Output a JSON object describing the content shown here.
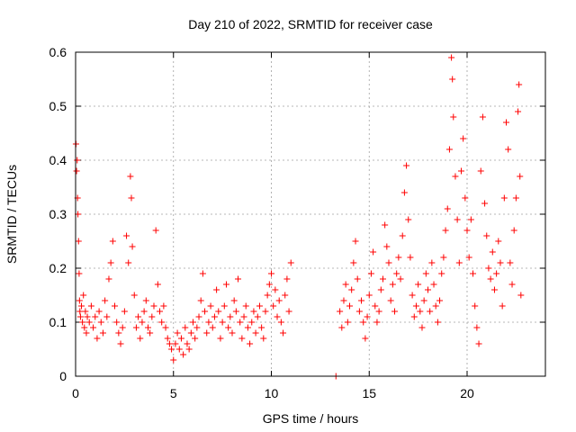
{
  "chart_data": {
    "type": "scatter",
    "title": "Day 210 of 2022, SRMTID for receiver case",
    "xlabel": "GPS time / hours",
    "ylabel": "SRMTID / TECUs",
    "xlim": [
      0,
      24
    ],
    "ylim": [
      0,
      0.6
    ],
    "xticks": [
      0,
      5,
      10,
      15,
      20
    ],
    "yticks": [
      0,
      0.1,
      0.2,
      0.3,
      0.4,
      0.5,
      0.6
    ],
    "xtick_labels": [
      "0",
      "5",
      "10",
      "15",
      "20"
    ],
    "ytick_labels": [
      "0",
      "0.1",
      "0.2",
      "0.3",
      "0.4",
      "0.5",
      "0.6"
    ],
    "grid": true,
    "marker": "+",
    "color": "#ff0000",
    "series": [
      {
        "name": "SRMTID",
        "points": [
          [
            0.02,
            0.43
          ],
          [
            0.05,
            0.38
          ],
          [
            0.08,
            0.4
          ],
          [
            0.1,
            0.33
          ],
          [
            0.12,
            0.3
          ],
          [
            0.15,
            0.25
          ],
          [
            0.18,
            0.19
          ],
          [
            0.2,
            0.14
          ],
          [
            0.22,
            0.12
          ],
          [
            0.25,
            0.11
          ],
          [
            0.3,
            0.13
          ],
          [
            0.35,
            0.1
          ],
          [
            0.4,
            0.15
          ],
          [
            0.45,
            0.09
          ],
          [
            0.5,
            0.12
          ],
          [
            0.55,
            0.08
          ],
          [
            0.6,
            0.11
          ],
          [
            0.7,
            0.1
          ],
          [
            0.8,
            0.13
          ],
          [
            0.9,
            0.09
          ],
          [
            1.0,
            0.11
          ],
          [
            1.1,
            0.07
          ],
          [
            1.2,
            0.12
          ],
          [
            1.3,
            0.1
          ],
          [
            1.4,
            0.08
          ],
          [
            1.5,
            0.14
          ],
          [
            1.6,
            0.11
          ],
          [
            1.7,
            0.18
          ],
          [
            1.8,
            0.21
          ],
          [
            1.9,
            0.25
          ],
          [
            2.0,
            0.13
          ],
          [
            2.1,
            0.1
          ],
          [
            2.2,
            0.08
          ],
          [
            2.3,
            0.06
          ],
          [
            2.4,
            0.09
          ],
          [
            2.5,
            0.12
          ],
          [
            2.6,
            0.26
          ],
          [
            2.7,
            0.21
          ],
          [
            2.8,
            0.37
          ],
          [
            2.85,
            0.33
          ],
          [
            2.9,
            0.24
          ],
          [
            3.0,
            0.15
          ],
          [
            3.1,
            0.09
          ],
          [
            3.2,
            0.11
          ],
          [
            3.3,
            0.07
          ],
          [
            3.4,
            0.1
          ],
          [
            3.5,
            0.12
          ],
          [
            3.6,
            0.14
          ],
          [
            3.7,
            0.09
          ],
          [
            3.8,
            0.08
          ],
          [
            3.9,
            0.11
          ],
          [
            4.0,
            0.13
          ],
          [
            4.1,
            0.27
          ],
          [
            4.2,
            0.17
          ],
          [
            4.3,
            0.12
          ],
          [
            4.4,
            0.1
          ],
          [
            4.5,
            0.13
          ],
          [
            4.6,
            0.09
          ],
          [
            4.7,
            0.07
          ],
          [
            4.8,
            0.06
          ],
          [
            4.9,
            0.05
          ],
          [
            5.0,
            0.03
          ],
          [
            5.1,
            0.06
          ],
          [
            5.2,
            0.08
          ],
          [
            5.3,
            0.05
          ],
          [
            5.4,
            0.07
          ],
          [
            5.5,
            0.04
          ],
          [
            5.6,
            0.09
          ],
          [
            5.7,
            0.06
          ],
          [
            5.8,
            0.05
          ],
          [
            5.9,
            0.08
          ],
          [
            6.0,
            0.1
          ],
          [
            6.1,
            0.07
          ],
          [
            6.2,
            0.09
          ],
          [
            6.3,
            0.11
          ],
          [
            6.4,
            0.14
          ],
          [
            6.5,
            0.19
          ],
          [
            6.6,
            0.12
          ],
          [
            6.7,
            0.08
          ],
          [
            6.8,
            0.1
          ],
          [
            6.9,
            0.13
          ],
          [
            7.0,
            0.09
          ],
          [
            7.1,
            0.11
          ],
          [
            7.2,
            0.16
          ],
          [
            7.3,
            0.12
          ],
          [
            7.4,
            0.07
          ],
          [
            7.5,
            0.1
          ],
          [
            7.6,
            0.13
          ],
          [
            7.7,
            0.17
          ],
          [
            7.8,
            0.09
          ],
          [
            7.9,
            0.11
          ],
          [
            8.0,
            0.08
          ],
          [
            8.1,
            0.14
          ],
          [
            8.2,
            0.12
          ],
          [
            8.3,
            0.18
          ],
          [
            8.4,
            0.1
          ],
          [
            8.5,
            0.07
          ],
          [
            8.6,
            0.11
          ],
          [
            8.7,
            0.13
          ],
          [
            8.8,
            0.09
          ],
          [
            8.9,
            0.06
          ],
          [
            9.0,
            0.1
          ],
          [
            9.1,
            0.12
          ],
          [
            9.2,
            0.08
          ],
          [
            9.3,
            0.11
          ],
          [
            9.4,
            0.13
          ],
          [
            9.5,
            0.09
          ],
          [
            9.6,
            0.07
          ],
          [
            9.7,
            0.12
          ],
          [
            9.8,
            0.15
          ],
          [
            9.9,
            0.17
          ],
          [
            10.0,
            0.19
          ],
          [
            10.1,
            0.13
          ],
          [
            10.2,
            0.16
          ],
          [
            10.3,
            0.11
          ],
          [
            10.4,
            0.14
          ],
          [
            10.5,
            0.1
          ],
          [
            10.6,
            0.08
          ],
          [
            10.7,
            0.15
          ],
          [
            10.8,
            0.18
          ],
          [
            10.9,
            0.12
          ],
          [
            11.0,
            0.21
          ],
          [
            13.3,
            0.0
          ],
          [
            13.5,
            0.12
          ],
          [
            13.6,
            0.09
          ],
          [
            13.7,
            0.14
          ],
          [
            13.8,
            0.17
          ],
          [
            13.9,
            0.1
          ],
          [
            14.0,
            0.13
          ],
          [
            14.1,
            0.16
          ],
          [
            14.2,
            0.21
          ],
          [
            14.3,
            0.25
          ],
          [
            14.4,
            0.18
          ],
          [
            14.5,
            0.12
          ],
          [
            14.6,
            0.14
          ],
          [
            14.7,
            0.1
          ],
          [
            14.8,
            0.07
          ],
          [
            14.9,
            0.11
          ],
          [
            15.0,
            0.15
          ],
          [
            15.1,
            0.19
          ],
          [
            15.2,
            0.23
          ],
          [
            15.3,
            0.13
          ],
          [
            15.4,
            0.1
          ],
          [
            15.5,
            0.12
          ],
          [
            15.6,
            0.16
          ],
          [
            15.7,
            0.18
          ],
          [
            15.8,
            0.28
          ],
          [
            15.9,
            0.24
          ],
          [
            16.0,
            0.21
          ],
          [
            16.1,
            0.14
          ],
          [
            16.2,
            0.17
          ],
          [
            16.3,
            0.12
          ],
          [
            16.4,
            0.19
          ],
          [
            16.5,
            0.22
          ],
          [
            16.6,
            0.18
          ],
          [
            16.7,
            0.26
          ],
          [
            16.8,
            0.34
          ],
          [
            16.9,
            0.39
          ],
          [
            17.0,
            0.29
          ],
          [
            17.1,
            0.22
          ],
          [
            17.2,
            0.15
          ],
          [
            17.3,
            0.11
          ],
          [
            17.4,
            0.13
          ],
          [
            17.5,
            0.17
          ],
          [
            17.6,
            0.12
          ],
          [
            17.7,
            0.09
          ],
          [
            17.8,
            0.14
          ],
          [
            17.9,
            0.19
          ],
          [
            18.0,
            0.16
          ],
          [
            18.1,
            0.12
          ],
          [
            18.2,
            0.21
          ],
          [
            18.3,
            0.17
          ],
          [
            18.4,
            0.13
          ],
          [
            18.5,
            0.1
          ],
          [
            18.6,
            0.14
          ],
          [
            18.7,
            0.19
          ],
          [
            18.8,
            0.22
          ],
          [
            18.9,
            0.27
          ],
          [
            19.0,
            0.31
          ],
          [
            19.1,
            0.42
          ],
          [
            19.2,
            0.59
          ],
          [
            19.25,
            0.55
          ],
          [
            19.3,
            0.48
          ],
          [
            19.4,
            0.37
          ],
          [
            19.5,
            0.29
          ],
          [
            19.6,
            0.21
          ],
          [
            19.7,
            0.38
          ],
          [
            19.8,
            0.44
          ],
          [
            19.9,
            0.33
          ],
          [
            20.0,
            0.27
          ],
          [
            20.1,
            0.22
          ],
          [
            20.2,
            0.29
          ],
          [
            20.3,
            0.19
          ],
          [
            20.4,
            0.13
          ],
          [
            20.5,
            0.09
          ],
          [
            20.6,
            0.06
          ],
          [
            20.7,
            0.38
          ],
          [
            20.8,
            0.48
          ],
          [
            20.9,
            0.32
          ],
          [
            21.0,
            0.26
          ],
          [
            21.1,
            0.2
          ],
          [
            21.2,
            0.18
          ],
          [
            21.3,
            0.23
          ],
          [
            21.4,
            0.16
          ],
          [
            21.5,
            0.19
          ],
          [
            21.6,
            0.25
          ],
          [
            21.7,
            0.21
          ],
          [
            21.8,
            0.13
          ],
          [
            21.9,
            0.33
          ],
          [
            22.0,
            0.47
          ],
          [
            22.1,
            0.42
          ],
          [
            22.2,
            0.21
          ],
          [
            22.3,
            0.17
          ],
          [
            22.4,
            0.27
          ],
          [
            22.5,
            0.33
          ],
          [
            22.6,
            0.49
          ],
          [
            22.65,
            0.54
          ],
          [
            22.7,
            0.37
          ],
          [
            22.75,
            0.15
          ]
        ]
      }
    ]
  }
}
